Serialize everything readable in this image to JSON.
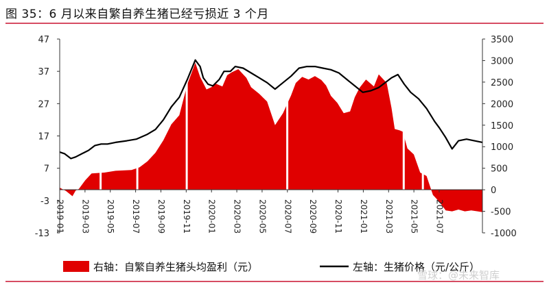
{
  "figure_title": "图 35：6 月以来自繁自养生猪已经亏损近 3 个月",
  "watermark": "雪球：@未来智库",
  "chart_data": {
    "type": "line+area",
    "left_axis": {
      "ticks": [
        47,
        37,
        27,
        17,
        7,
        -3,
        -13
      ],
      "range": [
        -13,
        47
      ]
    },
    "right_axis": {
      "ticks": [
        3500,
        3000,
        2500,
        2000,
        1500,
        1000,
        500,
        0,
        -500,
        -1000
      ],
      "range": [
        -1000,
        3500
      ]
    },
    "x_tick_labels": [
      "2019-01",
      "2019-03",
      "2019-05",
      "2019-07",
      "2019-09",
      "2019-11",
      "2020-01",
      "2020-03",
      "2020-05",
      "2020-07",
      "2020-09",
      "2020-11",
      "2021-01",
      "2021-03",
      "2021-05",
      "2021-07"
    ],
    "x_range": [
      2019.0,
      2021.65
    ],
    "legend": [
      {
        "key": "profit",
        "label": "右轴：自繁自养生猪头均盈利（元）",
        "color": "#e00000"
      },
      {
        "key": "price",
        "label": "左轴：生猪价格（元/公斤）",
        "color": "#000000"
      }
    ],
    "series": [
      {
        "name": "右轴：自繁自养生猪头均盈利（元）",
        "axis": "right",
        "type": "area",
        "color": "#e00000",
        "x": [
          2019.0,
          2019.04,
          2019.08,
          2019.1,
          2019.12,
          2019.16,
          2019.2,
          2019.28,
          2019.35,
          2019.45,
          2019.5,
          2019.55,
          2019.6,
          2019.65,
          2019.7,
          2019.75,
          2019.8,
          2019.85,
          2019.88,
          2019.92,
          2019.95,
          2019.98,
          2020.02,
          2020.05,
          2020.08,
          2020.12,
          2020.17,
          2020.2,
          2020.25,
          2020.3,
          2020.35,
          2020.4,
          2020.45,
          2020.48,
          2020.52,
          2020.56,
          2020.6,
          2020.64,
          2020.67,
          2020.7,
          2020.74,
          2020.78,
          2020.82,
          2020.85,
          2020.88,
          2020.92,
          2020.97,
          2021.0,
          2021.05,
          2021.08,
          2021.1,
          2021.13,
          2021.15,
          2021.18,
          2021.22,
          2021.26,
          2021.3,
          2021.34,
          2021.38,
          2021.42,
          2021.46,
          2021.5,
          2021.54,
          2021.58,
          2021.62,
          2021.65
        ],
        "values": [
          50,
          -30,
          -150,
          -20,
          20,
          220,
          380,
          400,
          440,
          460,
          520,
          660,
          860,
          1150,
          1520,
          1730,
          2450,
          2950,
          2620,
          2330,
          2380,
          2460,
          2400,
          2660,
          2730,
          2800,
          2600,
          2380,
          2230,
          2050,
          1500,
          1780,
          2190,
          2480,
          2620,
          2560,
          2640,
          2550,
          2420,
          2180,
          2020,
          1780,
          1820,
          2150,
          2370,
          2560,
          2400,
          2680,
          2480,
          1900,
          1410,
          1380,
          1350,
          960,
          820,
          400,
          320,
          -120,
          -280,
          -480,
          -500,
          -460,
          -500,
          -480,
          -500,
          -520
        ]
      },
      {
        "name": "左轴：生猪价格（元/公斤）",
        "axis": "left",
        "type": "line",
        "color": "#000000",
        "x": [
          2019.0,
          2019.03,
          2019.07,
          2019.1,
          2019.14,
          2019.18,
          2019.22,
          2019.26,
          2019.3,
          2019.35,
          2019.42,
          2019.48,
          2019.55,
          2019.6,
          2019.65,
          2019.7,
          2019.75,
          2019.8,
          2019.85,
          2019.88,
          2019.9,
          2019.93,
          2019.96,
          2020.0,
          2020.03,
          2020.07,
          2020.1,
          2020.15,
          2020.2,
          2020.25,
          2020.3,
          2020.35,
          2020.4,
          2020.45,
          2020.5,
          2020.55,
          2020.6,
          2020.65,
          2020.7,
          2020.75,
          2020.8,
          2020.85,
          2020.9,
          2020.95,
          2021.0,
          2021.04,
          2021.08,
          2021.12,
          2021.16,
          2021.2,
          2021.25,
          2021.3,
          2021.35,
          2021.38,
          2021.42,
          2021.46,
          2021.5,
          2021.55,
          2021.6,
          2021.65
        ],
        "values": [
          12,
          11.5,
          10,
          10.5,
          11.5,
          12.5,
          14,
          14.5,
          14.5,
          15,
          15.5,
          16,
          17.5,
          19,
          22,
          26,
          29,
          34.5,
          40.5,
          38.5,
          35,
          33,
          32.5,
          34.5,
          37,
          37,
          38.5,
          38,
          36.5,
          35,
          33.5,
          31.5,
          33.5,
          35.5,
          38,
          38.5,
          38.5,
          38,
          37.5,
          36.5,
          34.5,
          32.5,
          30.5,
          31,
          32,
          33.5,
          35,
          36,
          33,
          30.5,
          28.5,
          25.5,
          21.5,
          19.5,
          16.5,
          13,
          15.5,
          16,
          15.5,
          15
        ]
      }
    ]
  }
}
